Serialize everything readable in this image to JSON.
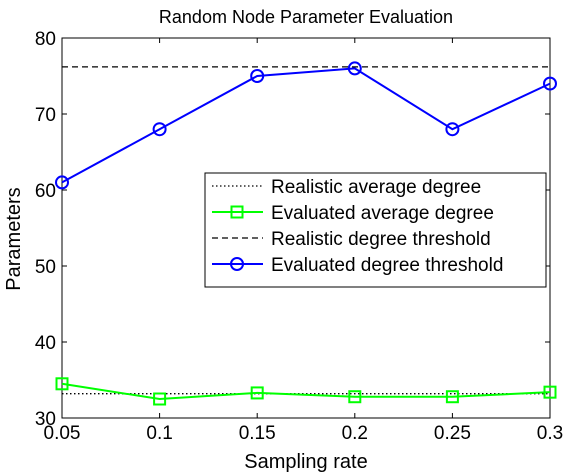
{
  "chart_data": {
    "type": "line",
    "title": "Random Node Parameter Evaluation",
    "xlabel": "Sampling rate",
    "ylabel": "Parameters",
    "xlim": [
      0.05,
      0.3
    ],
    "ylim": [
      30,
      80
    ],
    "x_ticks": [
      "0.05",
      "0.1",
      "0.15",
      "0.2",
      "0.25",
      "0.3"
    ],
    "y_ticks": [
      "30",
      "40",
      "50",
      "60",
      "70",
      "80"
    ],
    "grid": false,
    "legend_position": "right",
    "x": [
      0.05,
      0.1,
      0.15,
      0.2,
      0.25,
      0.3
    ],
    "series": [
      {
        "name": "Realistic average degree",
        "values": [
          33.2,
          33.2,
          33.2,
          33.2,
          33.2,
          33.2
        ],
        "color": "#000000",
        "line_style": "dotted",
        "marker": "none"
      },
      {
        "name": "Evaluated average degree",
        "values": [
          34.5,
          32.5,
          33.3,
          32.8,
          32.8,
          33.4
        ],
        "color": "#00ff00",
        "line_style": "solid",
        "marker": "square"
      },
      {
        "name": "Realistic degree threshold",
        "values": [
          76.2,
          76.2,
          76.2,
          76.2,
          76.2,
          76.2
        ],
        "color": "#000000",
        "line_style": "dashed",
        "marker": "none"
      },
      {
        "name": "Evaluated degree threshold",
        "values": [
          61,
          68,
          75,
          76,
          68,
          74
        ],
        "color": "#0000ff",
        "line_style": "solid",
        "marker": "circle"
      }
    ]
  }
}
